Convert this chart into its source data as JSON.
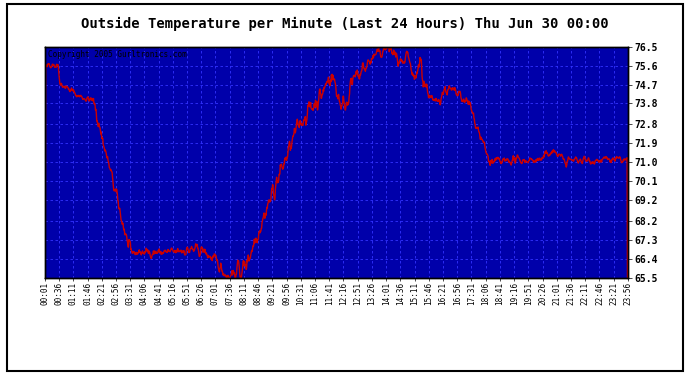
{
  "title": "Outside Temperature per Minute (Last 24 Hours) Thu Jun 30 00:00",
  "copyright": "Copyright 2005 Gurltronics.com",
  "xlabels": [
    "00:01",
    "00:36",
    "01:11",
    "01:46",
    "02:21",
    "02:56",
    "03:31",
    "04:06",
    "04:41",
    "05:16",
    "05:51",
    "06:26",
    "07:01",
    "07:36",
    "08:11",
    "08:46",
    "09:21",
    "09:56",
    "10:31",
    "11:06",
    "11:41",
    "12:16",
    "12:51",
    "13:26",
    "14:01",
    "14:36",
    "15:11",
    "15:46",
    "16:21",
    "16:56",
    "17:31",
    "18:06",
    "18:41",
    "19:16",
    "19:51",
    "20:26",
    "21:01",
    "21:36",
    "22:11",
    "22:46",
    "23:21",
    "23:56"
  ],
  "yticks": [
    65.5,
    66.4,
    67.3,
    68.2,
    69.2,
    70.1,
    71.0,
    71.9,
    72.8,
    73.8,
    74.7,
    75.6,
    76.5
  ],
  "ymin": 65.5,
  "ymax": 76.5,
  "line_color": "#cc0000",
  "bg_color": "#0000aa",
  "grid_color": "#3333ff",
  "fig_bg": "#ffffff"
}
